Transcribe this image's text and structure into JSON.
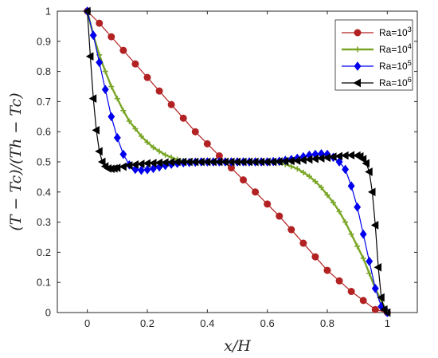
{
  "chart_data": {
    "type": "line",
    "xlabel": "x/H",
    "ylabel": "(T − Tc)/(Th − Tc)",
    "xlim": [
      -0.1,
      1.1
    ],
    "ylim": [
      0,
      1
    ],
    "xticks": [
      "0",
      "0.2",
      "0.4",
      "0.6",
      "0.8",
      "1"
    ],
    "xtick_values": [
      0,
      0.2,
      0.4,
      0.6,
      0.8,
      1
    ],
    "yticks": [
      "0",
      "0.1",
      "0.2",
      "0.3",
      "0.4",
      "0.5",
      "0.6",
      "0.7",
      "0.8",
      "0.9",
      "1"
    ],
    "ytick_values": [
      0,
      0.1,
      0.2,
      0.3,
      0.4,
      0.5,
      0.6,
      0.7,
      0.8,
      0.9,
      1
    ],
    "grid": false,
    "legend_position": "top-right",
    "series": [
      {
        "name_base": "Ra=10",
        "name_exp": "3",
        "color": "#b22222",
        "marker": "circle",
        "x": [
          0,
          0.04,
          0.08,
          0.12,
          0.16,
          0.2,
          0.24,
          0.28,
          0.32,
          0.36,
          0.4,
          0.44,
          0.48,
          0.52,
          0.56,
          0.6,
          0.64,
          0.68,
          0.72,
          0.76,
          0.8,
          0.84,
          0.88,
          0.92,
          0.96,
          1.0
        ],
        "y": [
          1.0,
          0.96,
          0.915,
          0.87,
          0.825,
          0.78,
          0.735,
          0.69,
          0.645,
          0.6,
          0.56,
          0.52,
          0.48,
          0.44,
          0.4,
          0.36,
          0.32,
          0.275,
          0.23,
          0.185,
          0.14,
          0.105,
          0.07,
          0.04,
          0.01,
          0.0
        ]
      },
      {
        "name_base": "Ra=10",
        "name_exp": "4",
        "color": "#7aa627",
        "marker": "plus",
        "x": [
          0,
          0.02,
          0.04,
          0.06,
          0.08,
          0.1,
          0.12,
          0.14,
          0.16,
          0.18,
          0.2,
          0.22,
          0.24,
          0.26,
          0.28,
          0.3,
          0.32,
          0.34,
          0.36,
          0.38,
          0.4,
          0.42,
          0.44,
          0.46,
          0.48,
          0.5,
          0.52,
          0.54,
          0.56,
          0.58,
          0.6,
          0.62,
          0.64,
          0.66,
          0.68,
          0.7,
          0.72,
          0.74,
          0.76,
          0.78,
          0.8,
          0.82,
          0.84,
          0.86,
          0.88,
          0.9,
          0.92,
          0.94,
          0.96,
          0.98,
          1.0
        ],
        "y": [
          1.0,
          0.92,
          0.855,
          0.8,
          0.75,
          0.71,
          0.67,
          0.635,
          0.61,
          0.585,
          0.565,
          0.548,
          0.535,
          0.523,
          0.515,
          0.508,
          0.504,
          0.501,
          0.5,
          0.5,
          0.5,
          0.5,
          0.5,
          0.5,
          0.5,
          0.5,
          0.5,
          0.5,
          0.5,
          0.5,
          0.5,
          0.499,
          0.496,
          0.492,
          0.485,
          0.477,
          0.465,
          0.452,
          0.435,
          0.415,
          0.39,
          0.365,
          0.335,
          0.3,
          0.26,
          0.22,
          0.18,
          0.13,
          0.08,
          0.04,
          0.0
        ]
      },
      {
        "name_base": "Ra=10",
        "name_exp": "5",
        "color": "#0000ee",
        "marker": "diamond",
        "x": [
          0,
          0.02,
          0.04,
          0.06,
          0.08,
          0.1,
          0.12,
          0.14,
          0.16,
          0.18,
          0.2,
          0.22,
          0.24,
          0.26,
          0.28,
          0.3,
          0.32,
          0.34,
          0.36,
          0.38,
          0.4,
          0.42,
          0.44,
          0.46,
          0.48,
          0.5,
          0.52,
          0.54,
          0.56,
          0.58,
          0.6,
          0.62,
          0.64,
          0.66,
          0.68,
          0.7,
          0.72,
          0.74,
          0.76,
          0.78,
          0.8,
          0.82,
          0.84,
          0.86,
          0.88,
          0.9,
          0.92,
          0.94,
          0.96,
          0.98,
          1.0
        ],
        "y": [
          1.0,
          0.92,
          0.83,
          0.74,
          0.65,
          0.58,
          0.525,
          0.49,
          0.475,
          0.472,
          0.474,
          0.478,
          0.483,
          0.488,
          0.492,
          0.495,
          0.497,
          0.498,
          0.499,
          0.5,
          0.5,
          0.5,
          0.5,
          0.5,
          0.5,
          0.5,
          0.5,
          0.5,
          0.5,
          0.5,
          0.5,
          0.501,
          0.502,
          0.505,
          0.508,
          0.512,
          0.517,
          0.522,
          0.525,
          0.527,
          0.525,
          0.515,
          0.5,
          0.475,
          0.42,
          0.35,
          0.26,
          0.17,
          0.08,
          0.02,
          0.0
        ]
      },
      {
        "name_base": "Ra=10",
        "name_exp": "6",
        "color": "#000000",
        "marker": "triangle-left",
        "x": [
          0,
          0.01,
          0.02,
          0.03,
          0.04,
          0.05,
          0.06,
          0.07,
          0.08,
          0.09,
          0.1,
          0.12,
          0.14,
          0.16,
          0.18,
          0.2,
          0.22,
          0.24,
          0.26,
          0.28,
          0.3,
          0.32,
          0.34,
          0.36,
          0.38,
          0.4,
          0.42,
          0.44,
          0.46,
          0.48,
          0.5,
          0.52,
          0.54,
          0.56,
          0.58,
          0.6,
          0.62,
          0.64,
          0.66,
          0.68,
          0.7,
          0.72,
          0.74,
          0.76,
          0.78,
          0.8,
          0.82,
          0.84,
          0.86,
          0.88,
          0.9,
          0.91,
          0.92,
          0.93,
          0.94,
          0.95,
          0.96,
          0.97,
          0.98,
          0.99,
          1.0
        ],
        "y": [
          1.0,
          0.85,
          0.71,
          0.605,
          0.535,
          0.5,
          0.485,
          0.478,
          0.477,
          0.478,
          0.48,
          0.484,
          0.488,
          0.491,
          0.493,
          0.495,
          0.496,
          0.497,
          0.498,
          0.499,
          0.5,
          0.5,
          0.5,
          0.5,
          0.5,
          0.5,
          0.5,
          0.5,
          0.5,
          0.5,
          0.5,
          0.5,
          0.5,
          0.5,
          0.5,
          0.5,
          0.5,
          0.501,
          0.502,
          0.503,
          0.504,
          0.506,
          0.508,
          0.51,
          0.512,
          0.514,
          0.517,
          0.519,
          0.521,
          0.522,
          0.521,
          0.518,
          0.509,
          0.495,
          0.467,
          0.4,
          0.29,
          0.15,
          0.05,
          0.01,
          0.0
        ]
      }
    ]
  }
}
